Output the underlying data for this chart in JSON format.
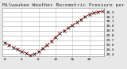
{
  "title": "Milwaukee Weather Barometric Pressure per Hour (Last 24 Hours)",
  "background_color": "#e8e8e8",
  "plot_bg_color": "#ffffff",
  "grid_color": "#aaaaaa",
  "line_color": "#ff0000",
  "marker_color": "#000000",
  "hours": [
    0,
    1,
    2,
    3,
    4,
    5,
    6,
    7,
    8,
    9,
    10,
    11,
    12,
    13,
    14,
    15,
    16,
    17,
    18,
    19,
    20,
    21,
    22,
    23
  ],
  "pressure": [
    29.65,
    29.6,
    29.55,
    29.5,
    29.46,
    29.42,
    29.38,
    29.4,
    29.45,
    29.52,
    29.6,
    29.68,
    29.76,
    29.84,
    29.9,
    29.96,
    30.02,
    30.08,
    30.14,
    30.2,
    30.25,
    30.28,
    30.3,
    30.32
  ],
  "ylim": [
    29.35,
    30.38
  ],
  "ytick_values": [
    29.4,
    29.5,
    29.6,
    29.7,
    29.8,
    29.9,
    30.0,
    30.1,
    30.2,
    30.3
  ],
  "title_fontsize": 4.5,
  "tick_fontsize": 3.2,
  "line_width": 0.7,
  "marker_size": 3.0
}
